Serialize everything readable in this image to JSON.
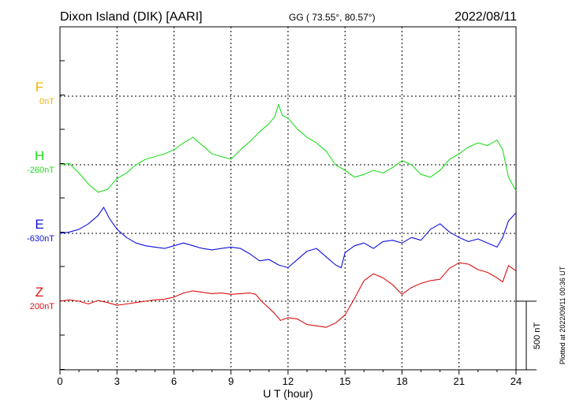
{
  "header": {
    "station": "Dixon Island (DIK)  [AARI]",
    "coords": "GG ( 73.55°,  80.57°)",
    "date": "2022/08/11"
  },
  "footer": {
    "plotted": "Plotted at 2022/09/11 00:36 UT",
    "scale_label": "500 nT"
  },
  "chart_data": {
    "type": "line",
    "title": "Dixon Island (DIK)  [AARI]",
    "xlabel": "U T (hour)",
    "ylabel": "",
    "xlim": [
      0,
      24
    ],
    "xticks": [
      "0",
      "3",
      "6",
      "9",
      "12",
      "15",
      "18",
      "21",
      "24"
    ],
    "grid": true,
    "scale_nT": 500,
    "series": [
      {
        "name": "F",
        "baseline": "0nT",
        "color": "#f0b400",
        "x": [],
        "values": []
      },
      {
        "name": "H",
        "baseline": "-260nT",
        "color": "#22dd22",
        "x": [
          0,
          0.5,
          1,
          1.5,
          2,
          2.5,
          3,
          3.5,
          4,
          4.5,
          5,
          5.5,
          6,
          6.5,
          7,
          7.5,
          8,
          8.5,
          9,
          9.5,
          10,
          10.5,
          11,
          11.3,
          11.5,
          11.7,
          12,
          12.5,
          13,
          13.5,
          14,
          14.5,
          15,
          15.5,
          16,
          16.5,
          17,
          17.5,
          18,
          18.5,
          19,
          19.5,
          20,
          20.5,
          21,
          21.5,
          22,
          22.5,
          23,
          23.3,
          23.6,
          24
        ],
        "values": [
          -260,
          -250,
          -320,
          -400,
          -460,
          -440,
          -360,
          -320,
          -260,
          -220,
          -200,
          -180,
          -150,
          -100,
          -60,
          -120,
          -180,
          -200,
          -220,
          -150,
          -90,
          -20,
          40,
          90,
          180,
          100,
          80,
          0,
          -60,
          -100,
          -160,
          -260,
          -300,
          -350,
          -330,
          -300,
          -320,
          -280,
          -230,
          -260,
          -330,
          -350,
          -300,
          -220,
          -180,
          -130,
          -100,
          -120,
          -80,
          -150,
          -350,
          -450
        ]
      },
      {
        "name": "E",
        "baseline": "-630nT",
        "color": "#1010dd",
        "x": [
          0,
          0.5,
          1,
          1.5,
          2,
          2.3,
          2.6,
          3,
          3.5,
          4,
          4.5,
          5,
          5.5,
          6,
          6.5,
          7,
          7.5,
          8,
          8.5,
          9,
          9.5,
          10,
          10.5,
          11,
          11.5,
          12,
          12.5,
          13,
          13.5,
          14,
          14.5,
          14.8,
          15,
          15.5,
          16,
          16.5,
          17,
          17.5,
          18,
          18.5,
          19,
          19.5,
          20,
          20.5,
          21,
          21.5,
          22,
          22.5,
          23,
          23.3,
          23.6,
          24
        ],
        "values": [
          -630,
          -620,
          -600,
          -560,
          -500,
          -440,
          -520,
          -600,
          -660,
          -700,
          -720,
          -730,
          -740,
          -720,
          -700,
          -720,
          -740,
          -750,
          -740,
          -730,
          -740,
          -780,
          -830,
          -820,
          -860,
          -880,
          -820,
          -760,
          -740,
          -800,
          -860,
          -880,
          -770,
          -720,
          -700,
          -740,
          -690,
          -680,
          -700,
          -660,
          -680,
          -600,
          -560,
          -620,
          -660,
          -690,
          -670,
          -700,
          -730,
          -660,
          -540,
          -480
        ]
      },
      {
        "name": "Z",
        "baseline": "200nT",
        "color": "#dd1010",
        "x": [
          0,
          0.5,
          1,
          1.5,
          2,
          2.5,
          3,
          3.5,
          4,
          4.5,
          5,
          5.5,
          6,
          6.5,
          7,
          7.5,
          8,
          8.5,
          9,
          9.5,
          10,
          10.3,
          10.6,
          11,
          11.3,
          11.6,
          12,
          12.5,
          13,
          13.5,
          14,
          14.5,
          15,
          15.5,
          16,
          16.5,
          17,
          17.5,
          18,
          18.5,
          19,
          19.5,
          20,
          20.5,
          21,
          21.5,
          22,
          22.5,
          23,
          23.3,
          23.6,
          24
        ],
        "values": [
          200,
          210,
          200,
          180,
          205,
          190,
          170,
          180,
          190,
          200,
          210,
          215,
          230,
          260,
          275,
          265,
          255,
          260,
          250,
          255,
          260,
          250,
          200,
          150,
          110,
          60,
          80,
          70,
          30,
          20,
          10,
          40,
          100,
          220,
          350,
          400,
          370,
          320,
          250,
          300,
          330,
          350,
          360,
          440,
          480,
          470,
          430,
          410,
          370,
          340,
          460,
          420
        ]
      }
    ]
  }
}
